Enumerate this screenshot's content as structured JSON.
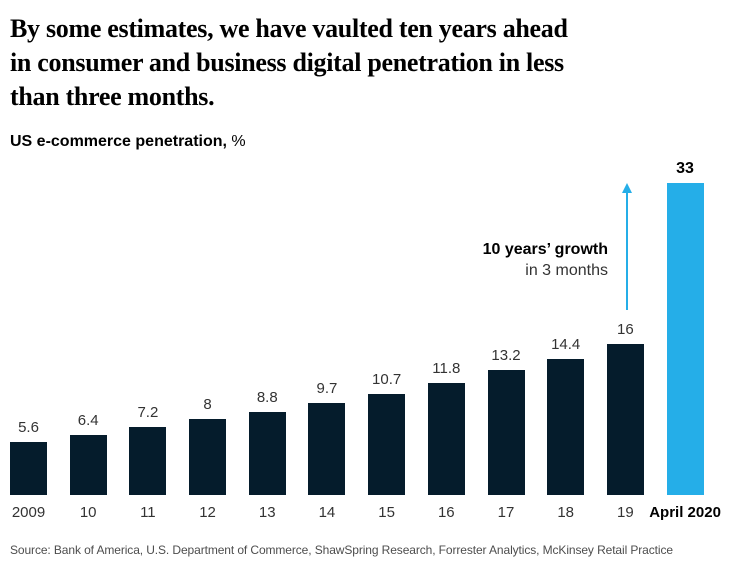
{
  "header": {
    "title_lines": [
      "By some estimates, we have vaulted ten years ahead",
      "in consumer and business digital penetration in less",
      "than three months."
    ],
    "subtitle_label": "US e-commerce penetration,",
    "subtitle_unit": "%"
  },
  "annotation": {
    "line1": "10 years’ growth",
    "line2": "in 3 months",
    "arrow_icon": "arrow-up-icon"
  },
  "chart_data": {
    "type": "bar",
    "title": "US e-commerce penetration, %",
    "categories": [
      "2009",
      "10",
      "11",
      "12",
      "13",
      "14",
      "15",
      "16",
      "17",
      "18",
      "19",
      "April 2020"
    ],
    "values": [
      5.6,
      6.4,
      7.2,
      8,
      8.8,
      9.7,
      10.7,
      11.8,
      13.2,
      14.4,
      16,
      33
    ],
    "highlight_index": 11,
    "bar_color": "#051C2C",
    "highlight_color": "#25AEE8",
    "value_label_color": "#333333",
    "annotation": "10 years’ growth in 3 months",
    "xlabel": "",
    "ylabel": "US e-commerce penetration, %",
    "ylim": [
      0,
      33
    ],
    "grid": false,
    "legend": false
  },
  "source": {
    "text": "Source: Bank of America, U.S. Department of Commerce, ShawSpring Research, Forrester Analytics, McKinsey Retail Practice"
  }
}
